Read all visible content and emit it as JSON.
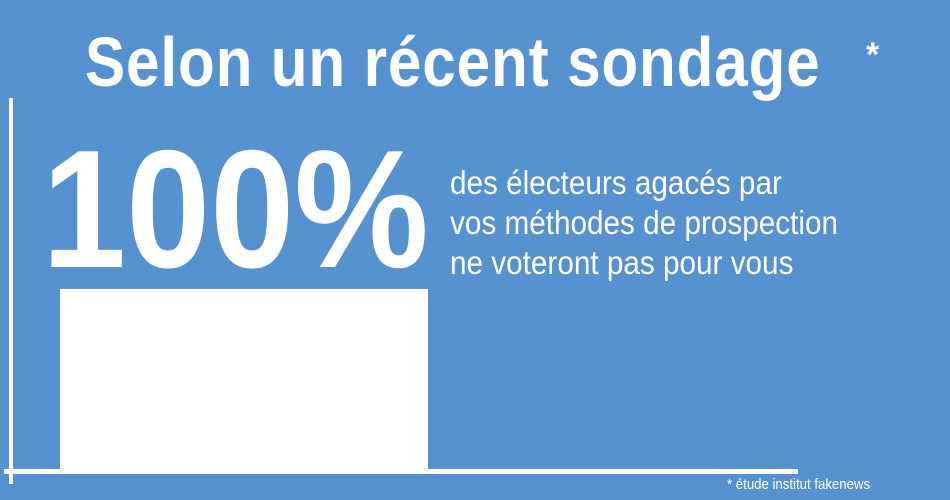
{
  "title": "Selon un récent sondage",
  "title_marker": "*",
  "chart_data": {
    "type": "bar",
    "categories": [
      ""
    ],
    "values": [
      100
    ],
    "data_labels": [
      "100%"
    ],
    "ylim": [
      0,
      100
    ],
    "grid": false,
    "annotation": [
      "des électeurs agacés par",
      "vos méthodes de prospection",
      "ne voteront pas pour vous"
    ],
    "bar_color": "#ffffff",
    "background_color": "#5592cf"
  },
  "footnote": "* étude institut fakenews"
}
